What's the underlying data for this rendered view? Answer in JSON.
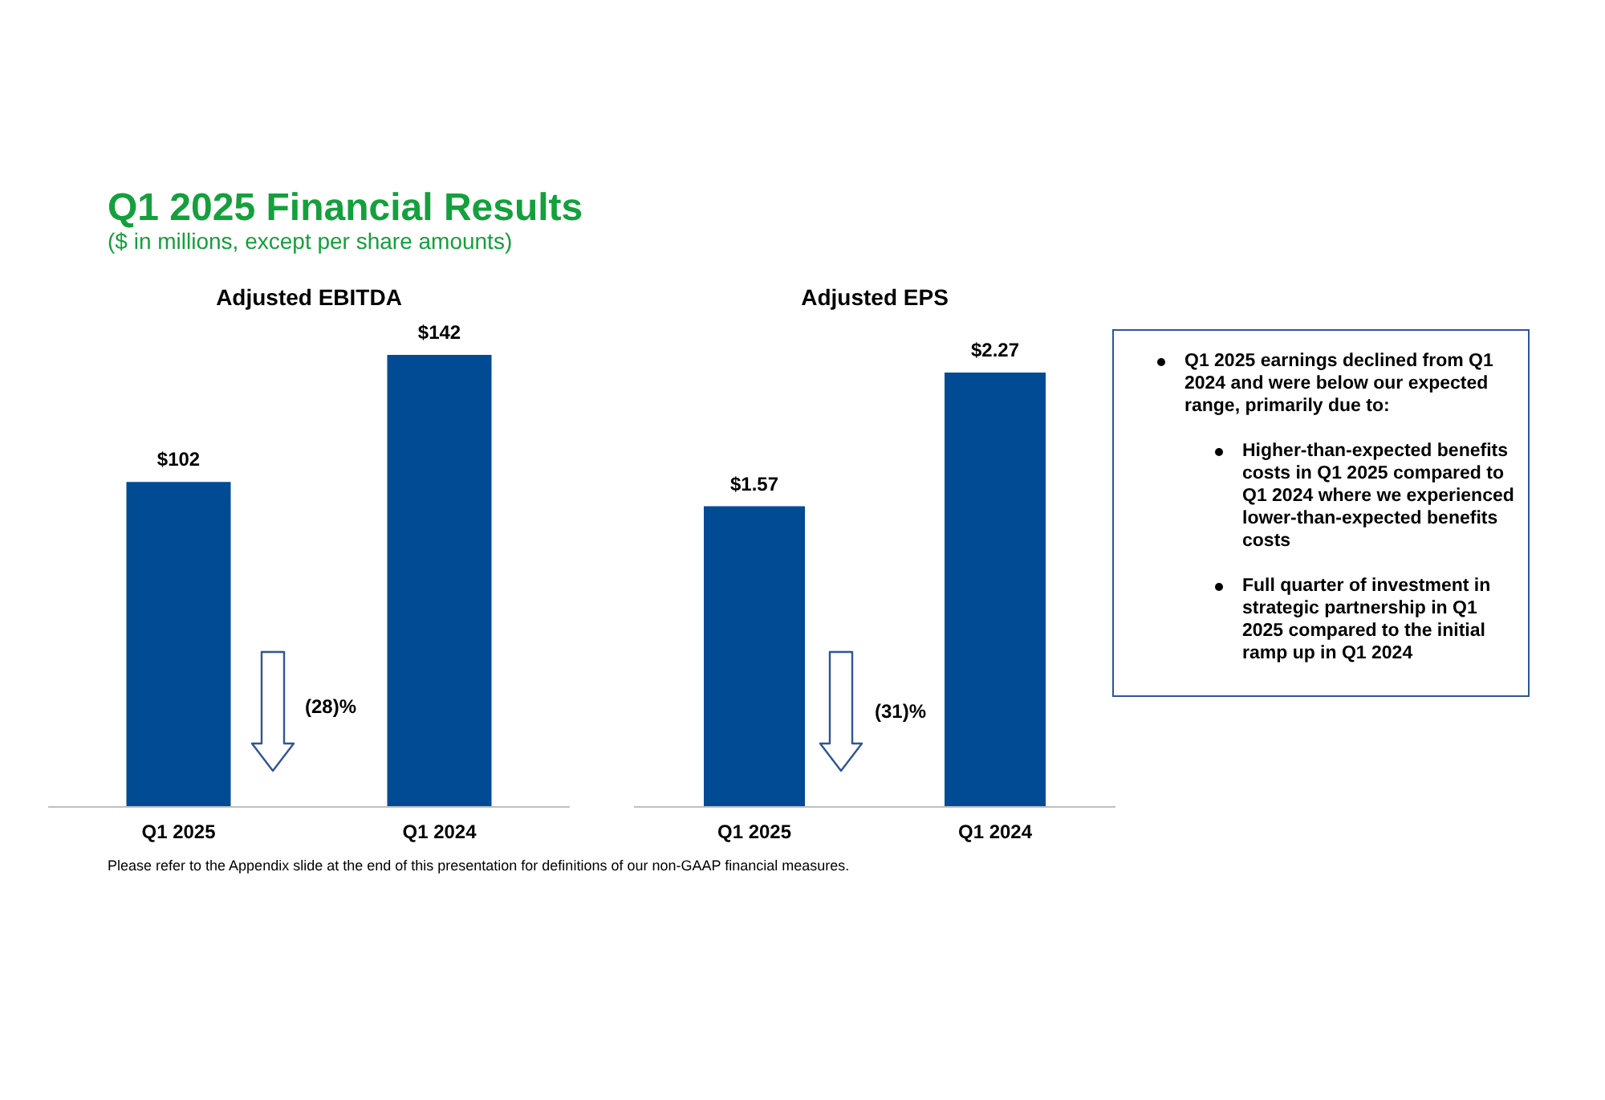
{
  "chart_data": [
    {
      "type": "other",
      "title": "Q1 2025 Financial Results",
      "subtitle": "($ in millions, except per share amounts)",
      "annotations": [
        "Please refer to the Appendix slide at the end of this presentation for definitions of our non-GAAP financial measures."
      ]
    },
    {
      "type": "bar",
      "title": "Adjusted EBITDA",
      "categories": [
        "Q1 2025",
        "Q1 2024"
      ],
      "values": [
        102,
        142
      ],
      "color": "#004b93",
      "value_labels": [
        "$102",
        "$142"
      ],
      "annotations": [
        "(28)%"
      ]
    },
    {
      "type": "bar",
      "title": "Adjusted EPS",
      "categories": [
        "Q1 2025",
        "Q1 2024"
      ],
      "values": [
        1.57,
        2.27
      ],
      "color": "#004b93",
      "value_labels": [
        "$1.57",
        "$2.27"
      ],
      "annotations": [
        "(31)%"
      ]
    },
    {
      "type": "other",
      "annotations": [
        "Q1 2025 earnings declined from Q1 2024 and were below our expected range, primarily due to:",
        "Higher-than-expected benefits costs in Q1 2025 compared to Q1 2024 where we experienced lower-than-expected benefits costs",
        "Full quarter of investment in strategic partnership in Q1 2025 compared to the initial ramp up in Q1 2024"
      ]
    }
  ]
}
